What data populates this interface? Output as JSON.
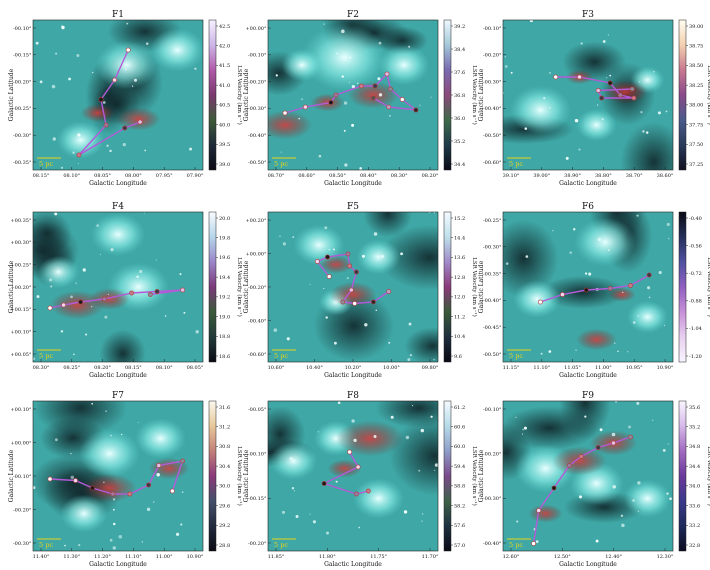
{
  "panels": [
    {
      "title": "F1",
      "xlabel": "Galactic Longitude",
      "ylabel": "Galactic Latitude",
      "xticks": [
        "08.15°",
        "08.10°",
        "08.05°",
        "08.00°",
        "07.95°",
        "07.90°"
      ],
      "yticks": [
        "-00.10°",
        "-00.15°",
        "-00.20°",
        "-00.25°",
        "-00.30°",
        "-00.35°"
      ],
      "cbar_label": "LSR Velocity (km s⁻¹)",
      "cbar_ticks": [
        "42.5",
        "42.0",
        "41.5",
        "41.0",
        "40.5",
        "40.0",
        "39.5",
        "39.0"
      ],
      "scale_label": "5 pc"
    },
    {
      "title": "F2",
      "xlabel": "Galactic Longitude",
      "ylabel": "Galactic Latitude",
      "xticks": [
        "08.70°",
        "08.60°",
        "08.50°",
        "08.40°",
        "08.30°",
        "08.20°"
      ],
      "yticks": [
        "+00.00°",
        "-00.10°",
        "-00.20°",
        "-00.30°",
        "-00.40°",
        "-00.50°"
      ],
      "cbar_label": "LSR Velocity (km s⁻¹)",
      "cbar_ticks": [
        "39.2",
        "38.4",
        "37.6",
        "36.8",
        "36.0",
        "35.2",
        "34.4"
      ],
      "scale_label": "5 pc"
    },
    {
      "title": "F3",
      "xlabel": "Galactic Longitude",
      "ylabel": "Galactic Latitude",
      "xticks": [
        "39.10°",
        "39.00°",
        "38.90°",
        "38.80°",
        "38.70°",
        "38.60°"
      ],
      "yticks": [
        "-00.10°",
        "-00.20°",
        "-00.30°",
        "-00.40°",
        "-00.50°",
        "-00.60°"
      ],
      "cbar_label": "LSR Velocity (km s⁻¹)",
      "cbar_ticks": [
        "39.00",
        "38.75",
        "38.50",
        "38.25",
        "38.00",
        "37.75",
        "37.50",
        "37.25"
      ],
      "scale_label": "5 pc"
    },
    {
      "title": "F4",
      "xlabel": "Galactic Longitude",
      "ylabel": "Galactic Latitude",
      "xticks": [
        "08.30°",
        "08.25°",
        "08.20°",
        "08.15°",
        "08.10°",
        "08.05°"
      ],
      "yticks": [
        "+00.35°",
        "+00.30°",
        "+00.25°",
        "+00.20°",
        "+00.15°",
        "+00.10°",
        "+00.05°"
      ],
      "cbar_label": "LSR Velocity (km s⁻¹)",
      "cbar_ticks": [
        "20.0",
        "19.8",
        "19.6",
        "19.4",
        "19.2",
        "19.0",
        "18.8",
        "18.6"
      ],
      "scale_label": "5 pc"
    },
    {
      "title": "F5",
      "xlabel": "Galactic Longitude",
      "ylabel": "Galactic Latitude",
      "xticks": [
        "10.60°",
        "10.40°",
        "10.20°",
        "10.00°",
        "09.80°"
      ],
      "yticks": [
        "+00.20°",
        "+00.00°",
        "-00.20°",
        "-00.40°",
        "-00.60°"
      ],
      "cbar_label": "LSR Velocity (km s⁻¹)",
      "cbar_ticks": [
        "15.2",
        "14.4",
        "13.6",
        "12.8",
        "12.0",
        "11.2",
        "10.4",
        "9.6"
      ],
      "scale_label": "5 pc"
    },
    {
      "title": "F6",
      "xlabel": "Galactic Longitude",
      "ylabel": "Galactic Latitude",
      "xticks": [
        "11.15°",
        "11.10°",
        "11.05°",
        "11.00°",
        "10.95°",
        "10.90°"
      ],
      "yticks": [
        "-00.25°",
        "-00.30°",
        "-00.35°",
        "-00.40°",
        "-00.45°",
        "-00.50°"
      ],
      "cbar_label": "LSR Velocity (km s⁻¹)",
      "cbar_ticks": [
        "-0.40",
        "-0.56",
        "-0.72",
        "-0.88",
        "-1.04",
        "-1.20"
      ],
      "scale_label": "5 pc"
    },
    {
      "title": "F7",
      "xlabel": "Galactic Longitude",
      "ylabel": "Galactic Latitude",
      "xticks": [
        "11.40°",
        "11.30°",
        "11.20°",
        "11.10°",
        "11.00°",
        "10.90°"
      ],
      "yticks": [
        "+00.10°",
        "+00.00°",
        "-00.10°",
        "-00.20°",
        "-00.30°"
      ],
      "cbar_label": "LSR Velocity (km s⁻¹)",
      "cbar_ticks": [
        "31.6",
        "31.2",
        "30.8",
        "30.4",
        "30.0",
        "29.6",
        "29.2",
        "28.8"
      ],
      "scale_label": "5 pc"
    },
    {
      "title": "F8",
      "xlabel": "Galactic Longitude",
      "ylabel": "Galactic Latitude",
      "xticks": [
        "11.85°",
        "11.80°",
        "11.75°",
        "11.70°"
      ],
      "yticks": [
        "-00.05°",
        "-00.10°",
        "-00.15°",
        "-00.20°"
      ],
      "cbar_label": "LSR Velocity (km s⁻¹)",
      "cbar_ticks": [
        "61.2",
        "60.6",
        "60.0",
        "59.4",
        "58.8",
        "58.2",
        "57.6",
        "57.0"
      ],
      "scale_label": "5 pc"
    },
    {
      "title": "F9",
      "xlabel": "Galactic Longitude",
      "ylabel": "Galactic Latitude",
      "xticks": [
        "12.60°",
        "12.50°",
        "12.40°",
        "12.30°"
      ],
      "yticks": [
        "-00.10°",
        "-00.20°",
        "-00.30°",
        "-00.40°"
      ],
      "cbar_label": "LSR Velocity (km s⁻¹)",
      "cbar_ticks": [
        "35.6",
        "35.2",
        "34.8",
        "34.4",
        "34.0",
        "33.6",
        "33.2",
        "32.8"
      ],
      "scale_label": "5 pc"
    }
  ],
  "colors": {
    "background": "#ffffff",
    "nebula_cyan": "#5fd6d2",
    "dust_red": "#b52a2a",
    "path_line": "#b45ad8"
  }
}
